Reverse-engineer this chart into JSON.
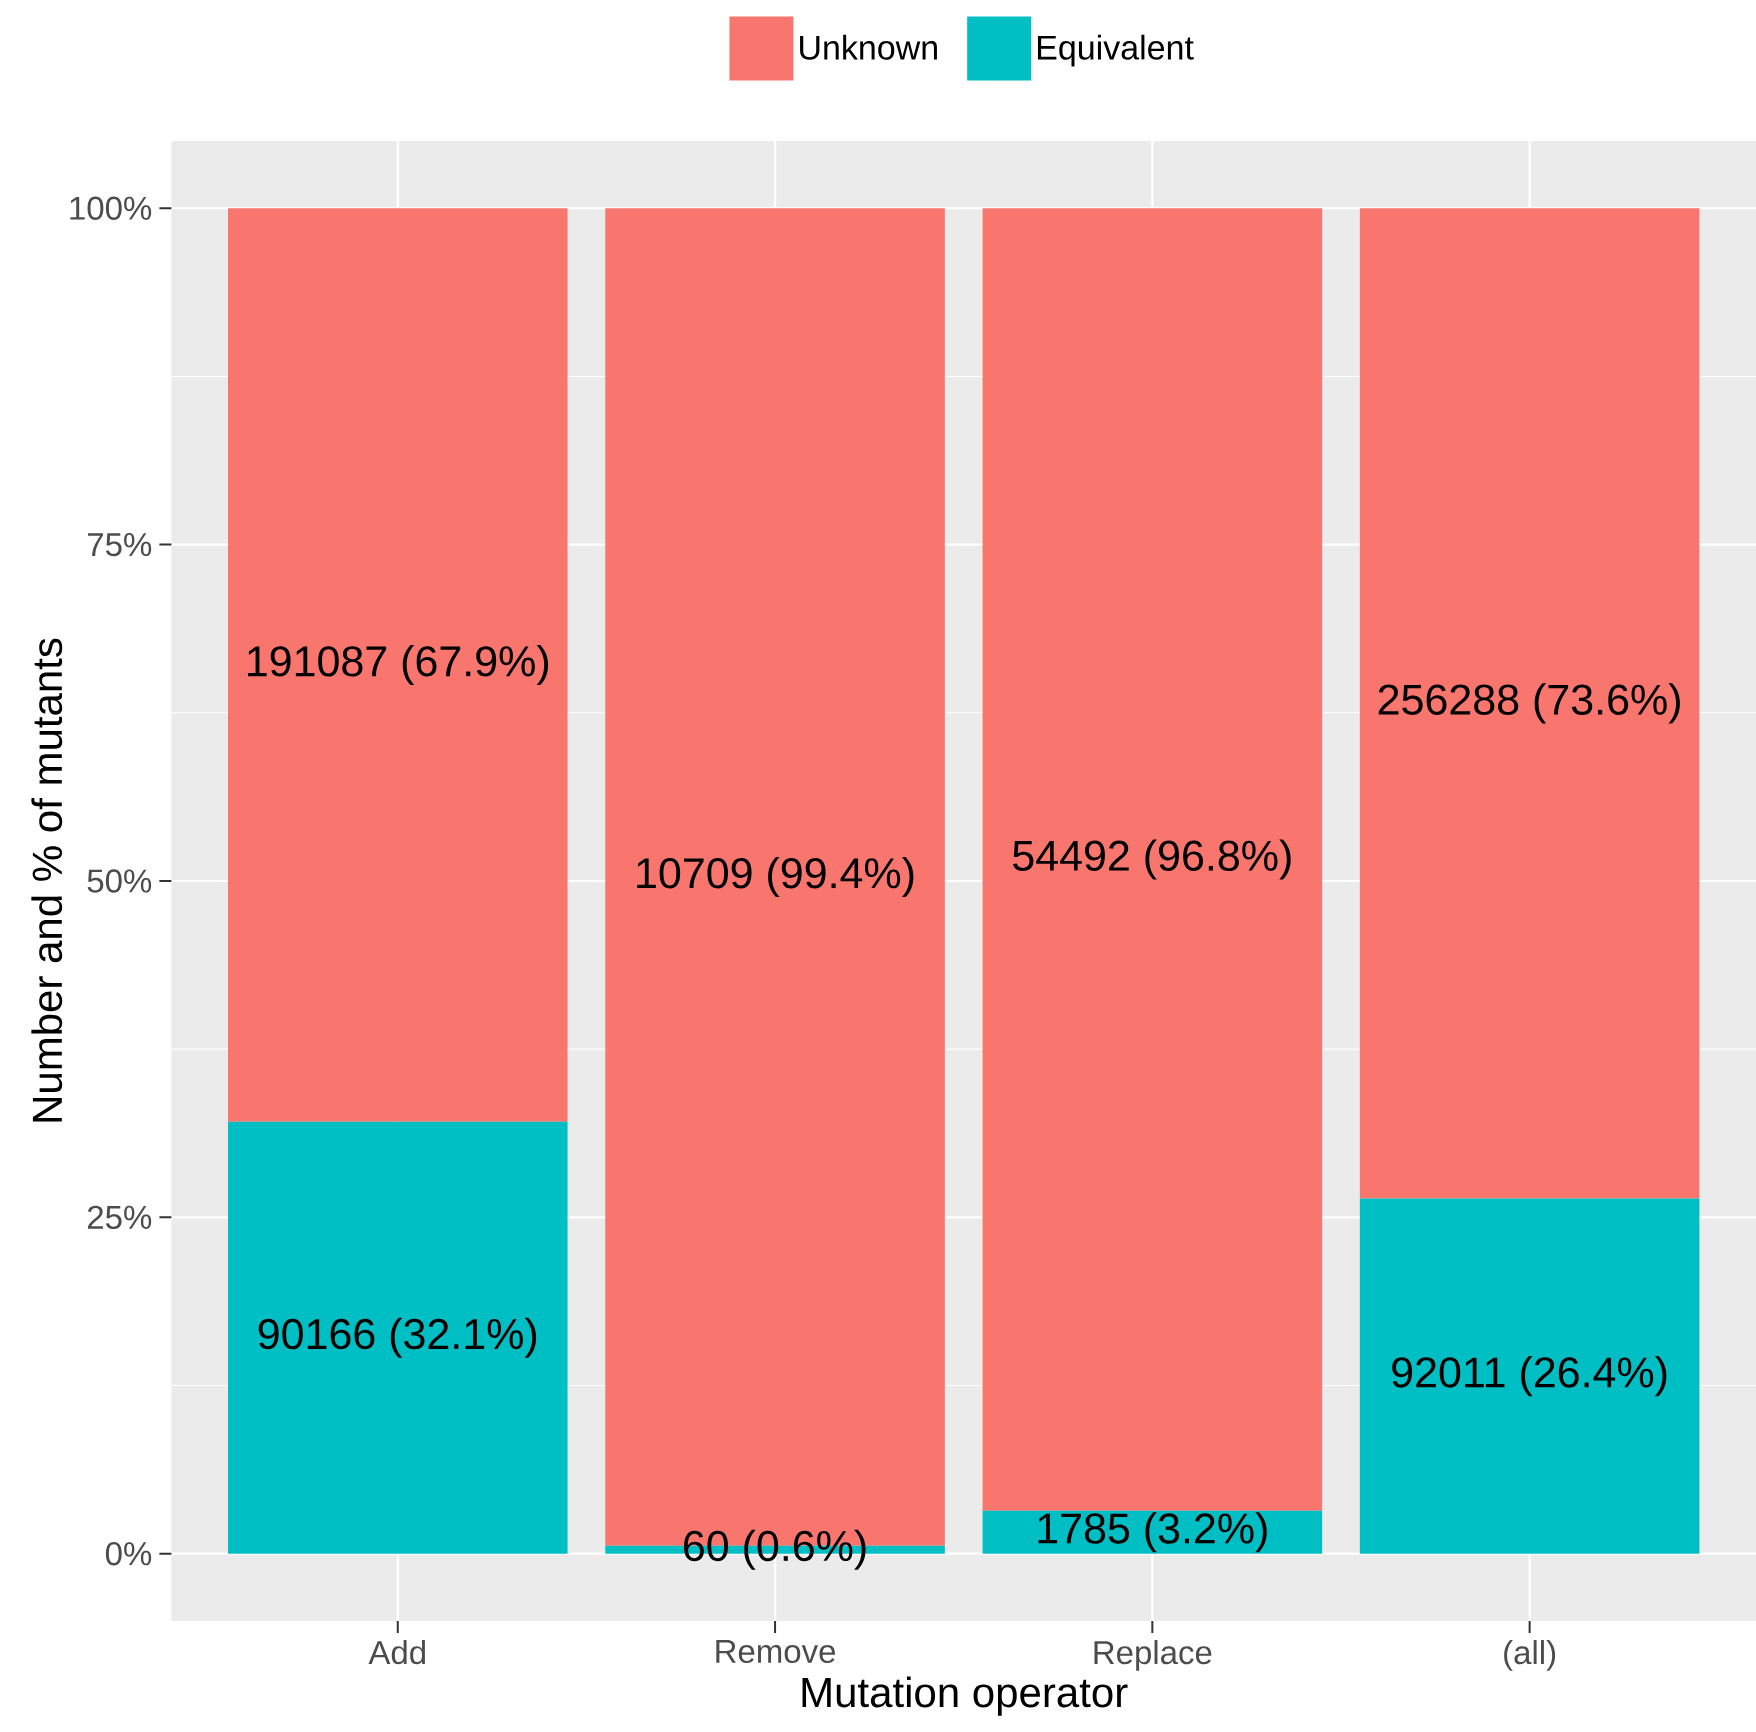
{
  "chart_data": {
    "type": "bar",
    "stacked": true,
    "xlabel": "Mutation operator",
    "ylabel": "Number and % of mutants",
    "categories": [
      "Add",
      "Remove",
      "Replace",
      "(all)"
    ],
    "series": [
      {
        "name": "Equivalent",
        "color": "#00bfc4",
        "values": [
          32.1,
          0.6,
          3.2,
          26.4
        ],
        "value_labels": [
          "90166 (32.1%)",
          "60 (0.6%)",
          "1785 (3.2%)",
          "92011 (26.4%)"
        ]
      },
      {
        "name": "Unknown",
        "color": "#f8766d",
        "values": [
          67.9,
          99.4,
          96.8,
          73.6
        ],
        "value_labels": [
          "191087 (67.9%)",
          "10709 (99.4%)",
          "54492 (96.8%)",
          "256288 (73.6%)"
        ]
      }
    ],
    "ylim": [
      -5,
      105
    ],
    "yticks": [
      {
        "value": 0,
        "label": "0%"
      },
      {
        "value": 25,
        "label": "25%"
      },
      {
        "value": 50,
        "label": "50%"
      },
      {
        "value": 75,
        "label": "75%"
      },
      {
        "value": 100,
        "label": "100%"
      }
    ],
    "grid": true,
    "legend": "top"
  }
}
